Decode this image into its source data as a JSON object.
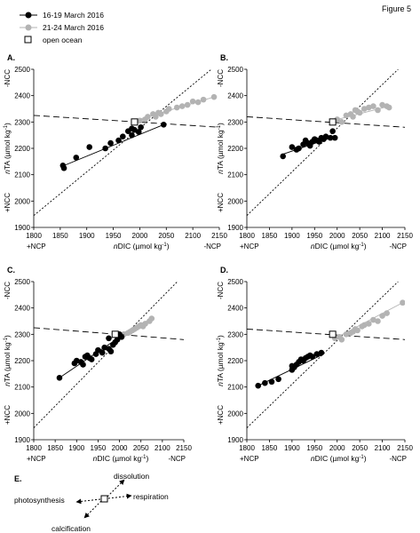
{
  "figure_label": "Figure 5",
  "legend": {
    "items": [
      {
        "label": "16-19 March 2016",
        "color": "#000000",
        "marker": "filled-circle-line"
      },
      {
        "label": "21-24 March 2016",
        "color": "#b3b3b3",
        "marker": "filled-circle-line"
      },
      {
        "label": "open ocean",
        "color": "#000000",
        "marker": "open-square"
      }
    ]
  },
  "axes_common": {
    "ylabel_prefix": "n",
    "ylabel_main": "TA (µmol kg",
    "ylabel_exp": "-1",
    "ylabel_close": ")",
    "xlabel_prefix": "n",
    "xlabel_main": "DIC (µmol kg",
    "xlabel_exp": "-1",
    "xlabel_close": ")",
    "y_top_label": "-NCC",
    "y_bottom_label": "+NCC",
    "x_left_label": "+NCP",
    "x_right_label": "-NCP"
  },
  "chart_data": [
    {
      "panel": "A.",
      "type": "scatter",
      "xlim": [
        1800,
        2150
      ],
      "ylim": [
        1900,
        2500
      ],
      "x_ticks": [
        "1800",
        "1850",
        "1900",
        "1950",
        "2000",
        "2050",
        "2100",
        "2150"
      ],
      "y_ticks": [
        "1900",
        "2000",
        "2100",
        "2200",
        "2300",
        "2400",
        "2500"
      ],
      "open_ocean": [
        1990,
        2300
      ],
      "ref_short_line": [
        [
          1800,
          2325
        ],
        [
          2150,
          2280
        ]
      ],
      "ref_dotted_line": [
        [
          1800,
          1945
        ],
        [
          2135,
          2500
        ]
      ],
      "series": [
        {
          "name": "16-19 March 2016",
          "color": "#000000",
          "fit": [
            [
              1855,
              2133
            ],
            [
              2045,
              2290
            ]
          ],
          "points": [
            [
              1855,
              2135
            ],
            [
              1857,
              2125
            ],
            [
              1880,
              2165
            ],
            [
              1905,
              2205
            ],
            [
              1935,
              2200
            ],
            [
              1945,
              2220
            ],
            [
              1960,
              2230
            ],
            [
              1968,
              2245
            ],
            [
              1978,
              2265
            ],
            [
              1985,
              2250
            ],
            [
              1990,
              2270
            ],
            [
              1998,
              2262
            ],
            [
              2002,
              2280
            ],
            [
              2045,
              2290
            ],
            [
              1985,
              2275
            ]
          ]
        },
        {
          "name": "21-24 March 2016",
          "color": "#b3b3b3",
          "fit": [
            [
              1990,
              2305
            ],
            [
              2140,
              2395
            ]
          ],
          "points": [
            [
              2000,
              2305
            ],
            [
              2010,
              2310
            ],
            [
              2015,
              2320
            ],
            [
              2025,
              2330
            ],
            [
              2030,
              2320
            ],
            [
              2035,
              2335
            ],
            [
              2040,
              2330
            ],
            [
              2050,
              2340
            ],
            [
              2055,
              2350
            ],
            [
              2070,
              2355
            ],
            [
              2080,
              2360
            ],
            [
              2090,
              2365
            ],
            [
              2100,
              2378
            ],
            [
              2110,
              2375
            ],
            [
              2120,
              2385
            ],
            [
              2140,
              2395
            ]
          ]
        }
      ]
    },
    {
      "panel": "B.",
      "type": "scatter",
      "xlim": [
        1800,
        2150
      ],
      "ylim": [
        1900,
        2500
      ],
      "x_ticks": [
        "1800",
        "1850",
        "1900",
        "1950",
        "2000",
        "2050",
        "2100",
        "2150"
      ],
      "y_ticks": [
        "1900",
        "2000",
        "2100",
        "2200",
        "2300",
        "2400",
        "2500"
      ],
      "open_ocean": [
        1990,
        2300
      ],
      "ref_short_line": [
        [
          1800,
          2320
        ],
        [
          2150,
          2280
        ]
      ],
      "ref_dotted_line": [
        [
          1800,
          1945
        ],
        [
          2135,
          2500
        ]
      ],
      "series": [
        {
          "name": "16-19 March 2016",
          "color": "#000000",
          "fit": [
            [
              1880,
              2178
            ],
            [
              1995,
              2245
            ]
          ],
          "points": [
            [
              1880,
              2170
            ],
            [
              1900,
              2205
            ],
            [
              1910,
              2195
            ],
            [
              1915,
              2200
            ],
            [
              1925,
              2215
            ],
            [
              1930,
              2230
            ],
            [
              1935,
              2220
            ],
            [
              1940,
              2210
            ],
            [
              1945,
              2225
            ],
            [
              1950,
              2235
            ],
            [
              1955,
              2230
            ],
            [
              1960,
              2225
            ],
            [
              1965,
              2240
            ],
            [
              1970,
              2235
            ],
            [
              1975,
              2245
            ],
            [
              1985,
              2240
            ],
            [
              1995,
              2240
            ],
            [
              1990,
              2265
            ]
          ]
        },
        {
          "name": "21-24 March 2016",
          "color": "#b3b3b3",
          "fit": [
            [
              1990,
              2305
            ],
            [
              2115,
              2360
            ]
          ],
          "points": [
            [
              2000,
              2310
            ],
            [
              2010,
              2300
            ],
            [
              2020,
              2325
            ],
            [
              2030,
              2330
            ],
            [
              2035,
              2320
            ],
            [
              2040,
              2345
            ],
            [
              2045,
              2340
            ],
            [
              2050,
              2335
            ],
            [
              2060,
              2350
            ],
            [
              2070,
              2355
            ],
            [
              2080,
              2360
            ],
            [
              2090,
              2345
            ],
            [
              2100,
              2365
            ],
            [
              2110,
              2360
            ],
            [
              2115,
              2355
            ]
          ]
        }
      ]
    },
    {
      "panel": "C.",
      "type": "scatter",
      "xlim": [
        1800,
        2150
      ],
      "ylim": [
        1900,
        2500
      ],
      "x_ticks": [
        "1800",
        "1850",
        "1900",
        "1950",
        "2000",
        "2050",
        "2100",
        "2150"
      ],
      "y_ticks": [
        "1900",
        "2000",
        "2100",
        "2200",
        "2300",
        "2400",
        "2500"
      ],
      "open_ocean": [
        1990,
        2300
      ],
      "ref_short_line": [
        [
          1800,
          2325
        ],
        [
          2150,
          2280
        ]
      ],
      "ref_dotted_line": [
        [
          1800,
          1945
        ],
        [
          2135,
          2500
        ]
      ],
      "series": [
        {
          "name": "16-19 March 2016",
          "color": "#000000",
          "fit": [
            [
              1860,
              2135
            ],
            [
              2010,
              2300
            ]
          ],
          "points": [
            [
              1860,
              2135
            ],
            [
              1895,
              2190
            ],
            [
              1900,
              2200
            ],
            [
              1910,
              2195
            ],
            [
              1915,
              2185
            ],
            [
              1920,
              2215
            ],
            [
              1925,
              2220
            ],
            [
              1930,
              2210
            ],
            [
              1935,
              2205
            ],
            [
              1945,
              2225
            ],
            [
              1950,
              2240
            ],
            [
              1960,
              2230
            ],
            [
              1965,
              2250
            ],
            [
              1975,
              2245
            ],
            [
              1980,
              2235
            ],
            [
              1985,
              2260
            ],
            [
              1990,
              2270
            ],
            [
              1995,
              2280
            ],
            [
              2000,
              2300
            ],
            [
              2005,
              2290
            ],
            [
              1975,
              2285
            ]
          ]
        },
        {
          "name": "21-24 March 2016",
          "color": "#b3b3b3",
          "fit": [
            [
              1990,
              2290
            ],
            [
              2075,
              2360
            ]
          ],
          "points": [
            [
              1995,
              2295
            ],
            [
              2000,
              2290
            ],
            [
              2010,
              2300
            ],
            [
              2020,
              2305
            ],
            [
              2025,
              2310
            ],
            [
              2030,
              2315
            ],
            [
              2035,
              2320
            ],
            [
              2040,
              2325
            ],
            [
              2045,
              2330
            ],
            [
              2050,
              2335
            ],
            [
              2055,
              2330
            ],
            [
              2060,
              2340
            ],
            [
              2070,
              2350
            ],
            [
              2075,
              2360
            ]
          ]
        }
      ]
    },
    {
      "panel": "D.",
      "type": "scatter",
      "xlim": [
        1800,
        2150
      ],
      "ylim": [
        1900,
        2500
      ],
      "x_ticks": [
        "1800",
        "1850",
        "1900",
        "1950",
        "2000",
        "2050",
        "2100",
        "2150"
      ],
      "y_ticks": [
        "1900",
        "2000",
        "2100",
        "2200",
        "2300",
        "2400",
        "2500"
      ],
      "open_ocean": [
        1990,
        2300
      ],
      "ref_short_line": [
        [
          1800,
          2320
        ],
        [
          2150,
          2280
        ]
      ],
      "ref_dotted_line": [
        [
          1800,
          1945
        ],
        [
          2135,
          2500
        ]
      ],
      "series": [
        {
          "name": "16-19 March 2016",
          "color": "#000000",
          "fit": [
            [
              1825,
              2105
            ],
            [
              1970,
              2225
            ]
          ],
          "points": [
            [
              1825,
              2105
            ],
            [
              1840,
              2115
            ],
            [
              1855,
              2120
            ],
            [
              1870,
              2130
            ],
            [
              1900,
              2165
            ],
            [
              1905,
              2175
            ],
            [
              1910,
              2185
            ],
            [
              1915,
              2195
            ],
            [
              1920,
              2205
            ],
            [
              1925,
              2200
            ],
            [
              1930,
              2210
            ],
            [
              1935,
              2215
            ],
            [
              1940,
              2220
            ],
            [
              1945,
              2215
            ],
            [
              1955,
              2225
            ],
            [
              1965,
              2230
            ],
            [
              1900,
              2180
            ]
          ]
        },
        {
          "name": "21-24 March 2016",
          "color": "#b3b3b3",
          "fit": [
            [
              1990,
              2280
            ],
            [
              2145,
              2420
            ]
          ],
          "points": [
            [
              1995,
              2285
            ],
            [
              2005,
              2290
            ],
            [
              2010,
              2280
            ],
            [
              2020,
              2300
            ],
            [
              2030,
              2305
            ],
            [
              2035,
              2310
            ],
            [
              2040,
              2320
            ],
            [
              2045,
              2315
            ],
            [
              2055,
              2330
            ],
            [
              2060,
              2335
            ],
            [
              2070,
              2340
            ],
            [
              2080,
              2355
            ],
            [
              2090,
              2350
            ],
            [
              2100,
              2370
            ],
            [
              2110,
              2380
            ],
            [
              2145,
              2420
            ]
          ]
        }
      ]
    }
  ],
  "process_diagram": {
    "panel": "E.",
    "labels": {
      "dissolution": "dissolution",
      "photosynthesis": "photosynthesis",
      "respiration": "respiration",
      "calcification": "calcification"
    }
  }
}
